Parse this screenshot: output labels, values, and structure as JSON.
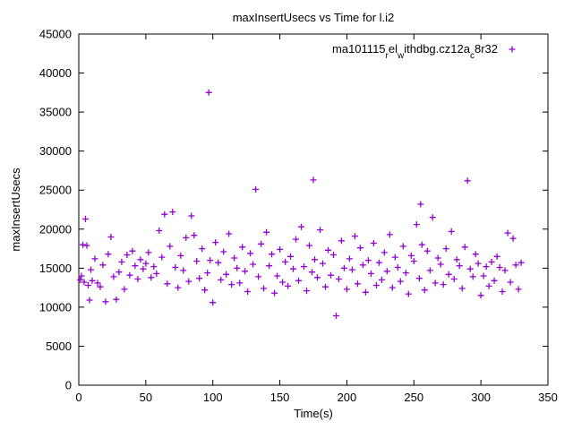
{
  "chart_data": {
    "type": "scatter",
    "title": "maxInsertUsecs vs Time for l.i2",
    "xlabel": "Time(s)",
    "ylabel": "maxInsertUsecs",
    "xlim": [
      0,
      350
    ],
    "ylim": [
      0,
      45000
    ],
    "xticks": [
      0,
      50,
      100,
      150,
      200,
      250,
      300,
      350
    ],
    "yticks": [
      0,
      5000,
      10000,
      15000,
      20000,
      25000,
      30000,
      35000,
      40000,
      45000
    ],
    "grid": false,
    "legend_position": "top-right-inside",
    "point_color": "#9400D3",
    "marker": "plus",
    "legend_segments": [
      {
        "t": "ma101115",
        "sub": false
      },
      {
        "t": "r",
        "sub": true
      },
      {
        "t": "el",
        "sub": false
      },
      {
        "t": "w",
        "sub": true
      },
      {
        "t": "ithdbg.cz12a",
        "sub": false
      },
      {
        "t": "c",
        "sub": true
      },
      {
        "t": "8r32",
        "sub": false
      }
    ],
    "series": [
      {
        "points": [
          [
            1,
            13500
          ],
          [
            2,
            14000
          ],
          [
            3,
            18000
          ],
          [
            4,
            13200
          ],
          [
            5,
            21300
          ],
          [
            6,
            17900
          ],
          [
            7,
            12800
          ],
          [
            8,
            10900
          ],
          [
            9,
            14800
          ],
          [
            10,
            13400
          ],
          [
            12,
            16200
          ],
          [
            14,
            13100
          ],
          [
            16,
            12600
          ],
          [
            18,
            15400
          ],
          [
            20,
            10700
          ],
          [
            22,
            16800
          ],
          [
            24,
            19000
          ],
          [
            26,
            13900
          ],
          [
            28,
            11000
          ],
          [
            30,
            14500
          ],
          [
            32,
            15800
          ],
          [
            34,
            12300
          ],
          [
            36,
            16700
          ],
          [
            38,
            14100
          ],
          [
            40,
            17200
          ],
          [
            42,
            15300
          ],
          [
            44,
            13600
          ],
          [
            46,
            16100
          ],
          [
            48,
            14900
          ],
          [
            50,
            15600
          ],
          [
            52,
            17000
          ],
          [
            54,
            13800
          ],
          [
            56,
            15200
          ],
          [
            58,
            14300
          ],
          [
            60,
            19800
          ],
          [
            62,
            16400
          ],
          [
            64,
            21900
          ],
          [
            66,
            13000
          ],
          [
            68,
            17800
          ],
          [
            70,
            22200
          ],
          [
            72,
            15100
          ],
          [
            74,
            12500
          ],
          [
            76,
            16600
          ],
          [
            78,
            14700
          ],
          [
            80,
            18900
          ],
          [
            82,
            13300
          ],
          [
            84,
            21700
          ],
          [
            86,
            19200
          ],
          [
            88,
            15900
          ],
          [
            90,
            13700
          ],
          [
            92,
            17500
          ],
          [
            94,
            12200
          ],
          [
            96,
            14400
          ],
          [
            97,
            37500
          ],
          [
            98,
            16000
          ],
          [
            100,
            10600
          ],
          [
            102,
            18300
          ],
          [
            104,
            15700
          ],
          [
            106,
            13500
          ],
          [
            108,
            17100
          ],
          [
            110,
            14200
          ],
          [
            112,
            19400
          ],
          [
            114,
            12900
          ],
          [
            116,
            16300
          ],
          [
            118,
            15000
          ],
          [
            120,
            13100
          ],
          [
            122,
            17700
          ],
          [
            124,
            14600
          ],
          [
            126,
            12000
          ],
          [
            128,
            16900
          ],
          [
            130,
            15500
          ],
          [
            132,
            25100
          ],
          [
            134,
            13900
          ],
          [
            136,
            18100
          ],
          [
            138,
            12400
          ],
          [
            140,
            19600
          ],
          [
            142,
            15300
          ],
          [
            144,
            16800
          ],
          [
            146,
            11800
          ],
          [
            148,
            14000
          ],
          [
            150,
            17400
          ],
          [
            152,
            13200
          ],
          [
            154,
            15800
          ],
          [
            156,
            12700
          ],
          [
            158,
            16500
          ],
          [
            160,
            14900
          ],
          [
            162,
            18700
          ],
          [
            164,
            13400
          ],
          [
            166,
            20300
          ],
          [
            168,
            15200
          ],
          [
            170,
            12100
          ],
          [
            172,
            17900
          ],
          [
            174,
            14500
          ],
          [
            175,
            26300
          ],
          [
            176,
            16100
          ],
          [
            178,
            13800
          ],
          [
            180,
            19900
          ],
          [
            182,
            15600
          ],
          [
            184,
            12600
          ],
          [
            186,
            17300
          ],
          [
            188,
            14100
          ],
          [
            190,
            16700
          ],
          [
            192,
            8900
          ],
          [
            194,
            13600
          ],
          [
            196,
            18500
          ],
          [
            198,
            15000
          ],
          [
            200,
            12300
          ],
          [
            202,
            16200
          ],
          [
            204,
            14800
          ],
          [
            206,
            19100
          ],
          [
            208,
            13000
          ],
          [
            210,
            17600
          ],
          [
            212,
            15400
          ],
          [
            214,
            11900
          ],
          [
            216,
            16000
          ],
          [
            218,
            14300
          ],
          [
            220,
            18200
          ],
          [
            222,
            12800
          ],
          [
            224,
            15700
          ],
          [
            226,
            13500
          ],
          [
            228,
            17000
          ],
          [
            230,
            14600
          ],
          [
            232,
            19300
          ],
          [
            234,
            12500
          ],
          [
            236,
            16400
          ],
          [
            238,
            15100
          ],
          [
            240,
            13300
          ],
          [
            242,
            17800
          ],
          [
            244,
            14400
          ],
          [
            246,
            11700
          ],
          [
            248,
            16600
          ],
          [
            250,
            15900
          ],
          [
            252,
            20600
          ],
          [
            254,
            13700
          ],
          [
            255,
            23200
          ],
          [
            256,
            18000
          ],
          [
            258,
            12200
          ],
          [
            260,
            17200
          ],
          [
            262,
            14700
          ],
          [
            264,
            21500
          ],
          [
            266,
            13100
          ],
          [
            268,
            16300
          ],
          [
            270,
            15500
          ],
          [
            272,
            12900
          ],
          [
            274,
            17500
          ],
          [
            276,
            14200
          ],
          [
            278,
            19700
          ],
          [
            280,
            13600
          ],
          [
            282,
            16100
          ],
          [
            284,
            15300
          ],
          [
            286,
            12400
          ],
          [
            288,
            17700
          ],
          [
            290,
            26200
          ],
          [
            292,
            14900
          ],
          [
            294,
            13900
          ],
          [
            296,
            16800
          ],
          [
            298,
            15600
          ],
          [
            300,
            11500
          ],
          [
            302,
            14000
          ],
          [
            304,
            15200
          ],
          [
            306,
            12700
          ],
          [
            308,
            15800
          ],
          [
            310,
            13400
          ],
          [
            312,
            16500
          ],
          [
            314,
            15100
          ],
          [
            316,
            12000
          ],
          [
            318,
            14700
          ],
          [
            320,
            19500
          ],
          [
            322,
            13200
          ],
          [
            324,
            18800
          ],
          [
            326,
            15400
          ],
          [
            328,
            12300
          ],
          [
            330,
            15700
          ]
        ]
      }
    ]
  }
}
